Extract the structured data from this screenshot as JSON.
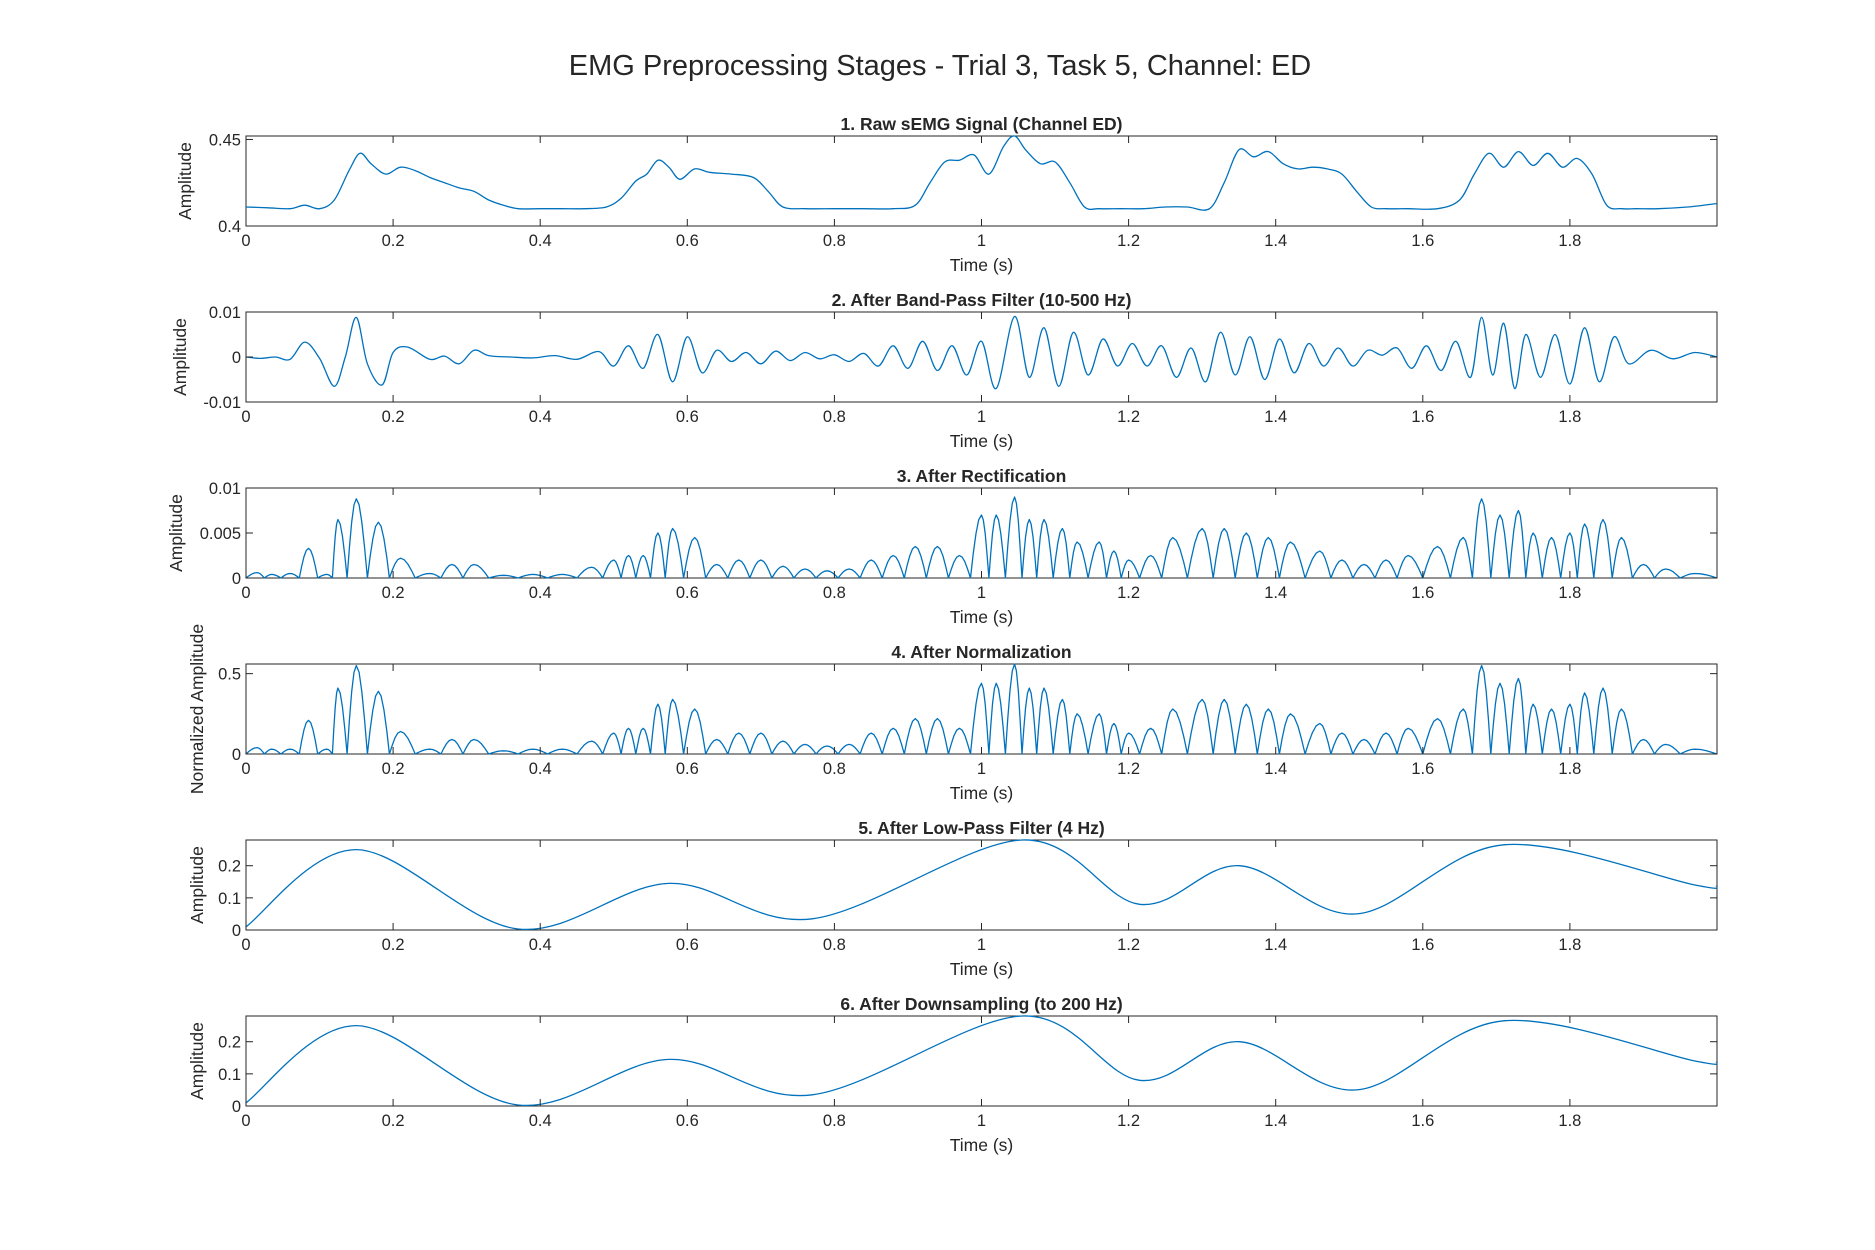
{
  "figure": {
    "title": "EMG Preprocessing Stages - Trial 3, Task 5, Channel: ED"
  },
  "colors": {
    "line": "#0072bd",
    "axes": "#262626"
  },
  "chart_data": [
    {
      "type": "line",
      "title": "1. Raw sEMG Signal (Channel ED)",
      "xlabel": "Time (s)",
      "ylabel": "Amplitude",
      "xlim": [
        0,
        2.0
      ],
      "ylim": [
        0.4,
        0.452
      ],
      "xticks": [
        0,
        0.2,
        0.4,
        0.6,
        0.8,
        1,
        1.2,
        1.4,
        1.6,
        1.8
      ],
      "xtick_labels": [
        "0",
        "0.2",
        "0.4",
        "0.6",
        "0.8",
        "1",
        "1.2",
        "1.4",
        "1.6",
        "1.8"
      ],
      "yticks": [
        0.4,
        0.45
      ],
      "ytick_labels": [
        "0.4",
        "0.45"
      ],
      "grid": false,
      "series": [
        {
          "x": [
            0,
            0.03,
            0.06,
            0.08,
            0.1,
            0.12,
            0.14,
            0.155,
            0.17,
            0.19,
            0.21,
            0.23,
            0.25,
            0.27,
            0.29,
            0.31,
            0.33,
            0.35,
            0.37,
            0.4,
            0.43,
            0.46,
            0.49,
            0.51,
            0.53,
            0.545,
            0.56,
            0.575,
            0.59,
            0.61,
            0.63,
            0.66,
            0.69,
            0.71,
            0.73,
            0.76,
            0.8,
            0.84,
            0.88,
            0.91,
            0.93,
            0.95,
            0.97,
            0.99,
            1.01,
            1.03,
            1.045,
            1.06,
            1.08,
            1.1,
            1.12,
            1.14,
            1.16,
            1.19,
            1.22,
            1.25,
            1.28,
            1.31,
            1.33,
            1.35,
            1.37,
            1.39,
            1.41,
            1.43,
            1.45,
            1.47,
            1.49,
            1.51,
            1.53,
            1.55,
            1.58,
            1.62,
            1.65,
            1.67,
            1.69,
            1.71,
            1.73,
            1.75,
            1.77,
            1.79,
            1.81,
            1.83,
            1.85,
            1.87,
            1.89,
            1.92,
            1.96,
            2.0
          ],
          "y": [
            0.411,
            0.4105,
            0.41,
            0.412,
            0.41,
            0.415,
            0.432,
            0.442,
            0.436,
            0.43,
            0.434,
            0.432,
            0.428,
            0.425,
            0.422,
            0.42,
            0.415,
            0.412,
            0.41,
            0.41,
            0.41,
            0.41,
            0.411,
            0.416,
            0.426,
            0.43,
            0.438,
            0.434,
            0.427,
            0.433,
            0.431,
            0.43,
            0.428,
            0.42,
            0.411,
            0.41,
            0.41,
            0.41,
            0.41,
            0.412,
            0.425,
            0.437,
            0.438,
            0.441,
            0.43,
            0.446,
            0.452,
            0.444,
            0.436,
            0.437,
            0.425,
            0.411,
            0.41,
            0.41,
            0.41,
            0.411,
            0.411,
            0.41,
            0.425,
            0.444,
            0.44,
            0.443,
            0.436,
            0.433,
            0.434,
            0.433,
            0.43,
            0.42,
            0.411,
            0.41,
            0.41,
            0.41,
            0.415,
            0.43,
            0.442,
            0.434,
            0.443,
            0.435,
            0.442,
            0.434,
            0.439,
            0.43,
            0.412,
            0.41,
            0.41,
            0.41,
            0.411,
            0.413
          ]
        }
      ]
    },
    {
      "type": "line",
      "title": "2. After Band-Pass Filter (10-500 Hz)",
      "xlabel": "Time (s)",
      "ylabel": "Amplitude",
      "xlim": [
        0,
        2.0
      ],
      "ylim": [
        -0.01,
        0.01
      ],
      "xticks": [
        0,
        0.2,
        0.4,
        0.6,
        0.8,
        1,
        1.2,
        1.4,
        1.6,
        1.8
      ],
      "xtick_labels": [
        "0",
        "0.2",
        "0.4",
        "0.6",
        "0.8",
        "1",
        "1.2",
        "1.4",
        "1.6",
        "1.8"
      ],
      "yticks": [
        -0.01,
        0,
        0.01
      ],
      "ytick_labels": [
        "-0.01",
        "0",
        "0.01"
      ],
      "grid": false,
      "series": [
        {
          "x": [
            0,
            0.02,
            0.04,
            0.06,
            0.08,
            0.1,
            0.12,
            0.135,
            0.15,
            0.165,
            0.185,
            0.2,
            0.22,
            0.25,
            0.27,
            0.29,
            0.31,
            0.33,
            0.36,
            0.39,
            0.42,
            0.45,
            0.48,
            0.5,
            0.52,
            0.54,
            0.56,
            0.58,
            0.6,
            0.62,
            0.64,
            0.66,
            0.68,
            0.7,
            0.72,
            0.74,
            0.76,
            0.78,
            0.8,
            0.82,
            0.84,
            0.86,
            0.88,
            0.9,
            0.92,
            0.94,
            0.96,
            0.98,
            1.0,
            1.02,
            1.045,
            1.065,
            1.085,
            1.105,
            1.125,
            1.145,
            1.165,
            1.185,
            1.205,
            1.225,
            1.245,
            1.265,
            1.285,
            1.305,
            1.325,
            1.345,
            1.365,
            1.385,
            1.405,
            1.425,
            1.445,
            1.465,
            1.485,
            1.505,
            1.525,
            1.545,
            1.565,
            1.585,
            1.605,
            1.625,
            1.645,
            1.665,
            1.68,
            1.695,
            1.71,
            1.725,
            1.74,
            1.76,
            1.78,
            1.8,
            1.82,
            1.84,
            1.86,
            1.88,
            1.91,
            1.94,
            1.97,
            2.0
          ],
          "y": [
            0,
            -0.0003,
            0,
            -0.0005,
            0.0033,
            -0.0003,
            -0.0065,
            0,
            0.0088,
            -0.0015,
            -0.0062,
            0.001,
            0.0022,
            -0.0005,
            0.0002,
            -0.0015,
            0.0015,
            0.0003,
            0,
            -0.0002,
            0.0003,
            -0.0005,
            0.0012,
            -0.002,
            0.0025,
            -0.0025,
            0.005,
            -0.0055,
            0.0045,
            -0.0035,
            0.0015,
            -0.001,
            0.001,
            -0.0015,
            0.0013,
            -0.0008,
            0.001,
            -0.0004,
            0.0005,
            -0.001,
            0.0008,
            -0.002,
            0.0025,
            -0.0025,
            0.0035,
            -0.003,
            0.0025,
            -0.004,
            0.0035,
            -0.007,
            0.009,
            -0.0045,
            0.0065,
            -0.0065,
            0.0055,
            -0.004,
            0.004,
            -0.002,
            0.003,
            -0.002,
            0.0025,
            -0.0045,
            0.002,
            -0.0055,
            0.0055,
            -0.004,
            0.0045,
            -0.005,
            0.004,
            -0.0035,
            0.003,
            -0.002,
            0.002,
            -0.002,
            0.0015,
            0.0004,
            0.002,
            -0.0025,
            0.0025,
            -0.003,
            0.0035,
            -0.0045,
            0.0088,
            -0.004,
            0.0075,
            -0.007,
            0.005,
            -0.0045,
            0.005,
            -0.006,
            0.0065,
            -0.0055,
            0.0045,
            -0.0015,
            0.0015,
            -0.0004,
            0.001,
            0
          ]
        }
      ]
    },
    {
      "type": "line",
      "title": "3. After Rectification",
      "xlabel": "Time (s)",
      "ylabel": "Amplitude",
      "xlim": [
        0,
        2.0
      ],
      "ylim": [
        0,
        0.01
      ],
      "xticks": [
        0,
        0.2,
        0.4,
        0.6,
        0.8,
        1,
        1.2,
        1.4,
        1.6,
        1.8
      ],
      "xtick_labels": [
        "0",
        "0.2",
        "0.4",
        "0.6",
        "0.8",
        "1",
        "1.2",
        "1.4",
        "1.6",
        "1.8"
      ],
      "yticks": [
        0,
        0.005,
        0.01
      ],
      "ytick_labels": [
        "0",
        "0.005",
        "0.01"
      ],
      "grid": false,
      "series": [
        {
          "peak_x": [
            0.015,
            0.035,
            0.06,
            0.085,
            0.11,
            0.125,
            0.15,
            0.18,
            0.21,
            0.25,
            0.28,
            0.31,
            0.35,
            0.39,
            0.43,
            0.47,
            0.5,
            0.52,
            0.54,
            0.56,
            0.58,
            0.61,
            0.64,
            0.67,
            0.7,
            0.73,
            0.76,
            0.79,
            0.82,
            0.85,
            0.88,
            0.91,
            0.94,
            0.97,
            1.0,
            1.02,
            1.045,
            1.065,
            1.085,
            1.11,
            1.13,
            1.16,
            1.18,
            1.2,
            1.23,
            1.26,
            1.3,
            1.33,
            1.36,
            1.39,
            1.42,
            1.46,
            1.49,
            1.52,
            1.55,
            1.58,
            1.62,
            1.655,
            1.68,
            1.705,
            1.73,
            1.75,
            1.775,
            1.8,
            1.82,
            1.845,
            1.87,
            1.9,
            1.93,
            1.97
          ],
          "peak_y": [
            0.0006,
            0.0004,
            0.0005,
            0.0033,
            0.0004,
            0.0065,
            0.0088,
            0.0062,
            0.0022,
            0.0005,
            0.0015,
            0.0015,
            0.0003,
            0.0004,
            0.0004,
            0.0012,
            0.002,
            0.0025,
            0.0025,
            0.005,
            0.0055,
            0.0045,
            0.0015,
            0.002,
            0.002,
            0.0013,
            0.001,
            0.0008,
            0.001,
            0.002,
            0.0025,
            0.0035,
            0.0035,
            0.0025,
            0.007,
            0.007,
            0.009,
            0.0065,
            0.0065,
            0.0055,
            0.004,
            0.004,
            0.003,
            0.002,
            0.0025,
            0.0045,
            0.0055,
            0.0055,
            0.005,
            0.0045,
            0.004,
            0.003,
            0.002,
            0.0015,
            0.002,
            0.0025,
            0.0035,
            0.0045,
            0.0088,
            0.007,
            0.0075,
            0.005,
            0.0045,
            0.005,
            0.006,
            0.0065,
            0.0045,
            0.0015,
            0.001,
            0.0005
          ]
        }
      ]
    },
    {
      "type": "line",
      "title": "4. After Normalization",
      "xlabel": "Time (s)",
      "ylabel": "Normalized Amplitude",
      "xlim": [
        0,
        2.0
      ],
      "ylim": [
        0,
        0.56
      ],
      "xticks": [
        0,
        0.2,
        0.4,
        0.6,
        0.8,
        1,
        1.2,
        1.4,
        1.6,
        1.8
      ],
      "xtick_labels": [
        "0",
        "0.2",
        "0.4",
        "0.6",
        "0.8",
        "1",
        "1.2",
        "1.4",
        "1.6",
        "1.8"
      ],
      "yticks": [
        0,
        0.5
      ],
      "ytick_labels": [
        "0",
        "0.5"
      ],
      "grid": false,
      "series": [
        {
          "peak_x": [
            0.015,
            0.035,
            0.06,
            0.085,
            0.11,
            0.125,
            0.15,
            0.18,
            0.21,
            0.25,
            0.28,
            0.31,
            0.35,
            0.39,
            0.43,
            0.47,
            0.5,
            0.52,
            0.54,
            0.56,
            0.58,
            0.61,
            0.64,
            0.67,
            0.7,
            0.73,
            0.76,
            0.79,
            0.82,
            0.85,
            0.88,
            0.91,
            0.94,
            0.97,
            1.0,
            1.02,
            1.045,
            1.065,
            1.085,
            1.11,
            1.13,
            1.16,
            1.18,
            1.2,
            1.23,
            1.26,
            1.3,
            1.33,
            1.36,
            1.39,
            1.42,
            1.46,
            1.49,
            1.52,
            1.55,
            1.58,
            1.62,
            1.655,
            1.68,
            1.705,
            1.73,
            1.75,
            1.775,
            1.8,
            1.82,
            1.845,
            1.87,
            1.9,
            1.93,
            1.97
          ],
          "peak_y": [
            0.04,
            0.03,
            0.03,
            0.21,
            0.03,
            0.41,
            0.55,
            0.39,
            0.14,
            0.03,
            0.09,
            0.09,
            0.02,
            0.03,
            0.03,
            0.08,
            0.13,
            0.16,
            0.16,
            0.31,
            0.34,
            0.28,
            0.09,
            0.13,
            0.13,
            0.08,
            0.06,
            0.05,
            0.06,
            0.13,
            0.16,
            0.22,
            0.22,
            0.16,
            0.44,
            0.44,
            0.56,
            0.41,
            0.41,
            0.34,
            0.25,
            0.25,
            0.19,
            0.13,
            0.16,
            0.28,
            0.34,
            0.34,
            0.31,
            0.28,
            0.25,
            0.19,
            0.13,
            0.09,
            0.13,
            0.16,
            0.22,
            0.28,
            0.55,
            0.44,
            0.47,
            0.31,
            0.28,
            0.31,
            0.38,
            0.41,
            0.28,
            0.09,
            0.06,
            0.03
          ]
        }
      ]
    },
    {
      "type": "line",
      "title": "5. After Low-Pass Filter (4 Hz)",
      "xlabel": "Time (s)",
      "ylabel": "Amplitude",
      "xlim": [
        0,
        2.0
      ],
      "ylim": [
        0,
        0.28
      ],
      "xticks": [
        0,
        0.2,
        0.4,
        0.6,
        0.8,
        1,
        1.2,
        1.4,
        1.6,
        1.8
      ],
      "xtick_labels": [
        "0",
        "0.2",
        "0.4",
        "0.6",
        "0.8",
        "1",
        "1.2",
        "1.4",
        "1.6",
        "1.8"
      ],
      "yticks": [
        0,
        0.1,
        0.2
      ],
      "ytick_labels": [
        "0",
        "0.1",
        "0.2"
      ],
      "grid": false,
      "series": [
        {
          "x": [
            0,
            0.15,
            0.37,
            0.575,
            0.77,
            1.055,
            1.215,
            1.35,
            1.51,
            1.71,
            1.97,
            2.0
          ],
          "y": [
            0.01,
            0.25,
            0.003,
            0.145,
            0.035,
            0.28,
            0.08,
            0.2,
            0.05,
            0.265,
            0.14,
            0.137
          ]
        }
      ]
    },
    {
      "type": "line",
      "title": "6. After Downsampling (to 200 Hz)",
      "xlabel": "Time (s)",
      "ylabel": "Amplitude",
      "xlim": [
        0,
        2.0
      ],
      "ylim": [
        0,
        0.28
      ],
      "xticks": [
        0,
        0.2,
        0.4,
        0.6,
        0.8,
        1,
        1.2,
        1.4,
        1.6,
        1.8
      ],
      "xtick_labels": [
        "0",
        "0.2",
        "0.4",
        "0.6",
        "0.8",
        "1",
        "1.2",
        "1.4",
        "1.6",
        "1.8"
      ],
      "yticks": [
        0,
        0.1,
        0.2
      ],
      "ytick_labels": [
        "0",
        "0.1",
        "0.2"
      ],
      "grid": false,
      "series": [
        {
          "x": [
            0,
            0.15,
            0.37,
            0.575,
            0.77,
            1.055,
            1.215,
            1.35,
            1.51,
            1.71,
            1.97,
            2.0
          ],
          "y": [
            0.01,
            0.25,
            0.003,
            0.145,
            0.035,
            0.28,
            0.08,
            0.2,
            0.05,
            0.265,
            0.14,
            0.137
          ]
        }
      ]
    }
  ]
}
